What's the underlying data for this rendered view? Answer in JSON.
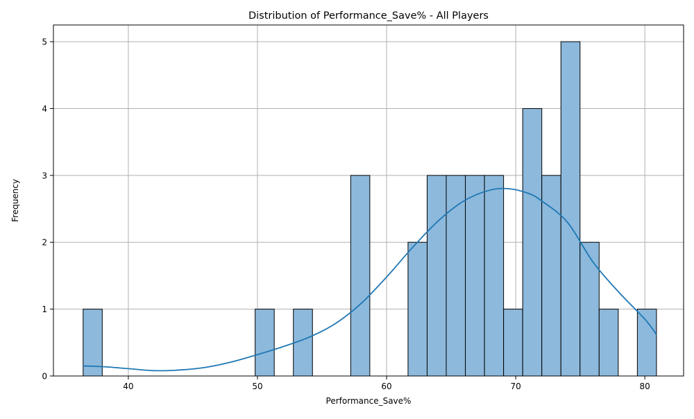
{
  "chart_data": {
    "type": "bar",
    "title": "Distribution of Performance_Save% - All Players",
    "xlabel": "Performance_Save%",
    "ylabel": "Frequency",
    "xlim": [
      34.2,
      83.0
    ],
    "ylim": [
      0,
      5.25
    ],
    "grid": true,
    "legend": "none",
    "x_ticks": [
      40,
      50,
      60,
      70,
      80
    ],
    "y_ticks": [
      0,
      1,
      2,
      3,
      4,
      5
    ],
    "bin_edges": [
      36.5,
      37.98,
      39.46,
      40.94,
      42.42,
      43.9,
      45.38,
      46.86,
      48.34,
      49.82,
      51.3,
      52.78,
      54.26,
      55.74,
      57.22,
      58.7,
      60.18,
      61.66,
      63.14,
      64.62,
      66.1,
      67.58,
      69.06,
      70.54,
      72.02,
      73.5,
      74.98,
      76.46,
      77.94,
      79.42,
      80.9
    ],
    "counts": [
      1,
      0,
      0,
      0,
      0,
      0,
      0,
      0,
      0,
      1,
      0,
      1,
      0,
      0,
      3,
      0,
      0,
      2,
      3,
      3,
      3,
      3,
      1,
      4,
      3,
      5,
      2,
      1,
      0,
      1
    ],
    "kde": {
      "x": [
        36.5,
        38,
        40,
        42,
        44,
        46,
        48,
        50,
        52,
        54,
        56,
        58,
        60,
        62,
        64,
        66,
        68,
        69.5,
        71,
        72,
        74,
        76,
        78,
        80,
        80.9
      ],
      "y": [
        0.15,
        0.14,
        0.11,
        0.08,
        0.09,
        0.13,
        0.21,
        0.32,
        0.44,
        0.58,
        0.78,
        1.08,
        1.48,
        1.92,
        2.32,
        2.62,
        2.78,
        2.8,
        2.73,
        2.62,
        2.3,
        1.7,
        1.25,
        0.85,
        0.62
      ]
    },
    "colors": {
      "bar_fill": "#8cb9dc",
      "bar_edge": "#000000",
      "kde_line": "#1f77b4",
      "grid": "#b0b0b0"
    }
  }
}
